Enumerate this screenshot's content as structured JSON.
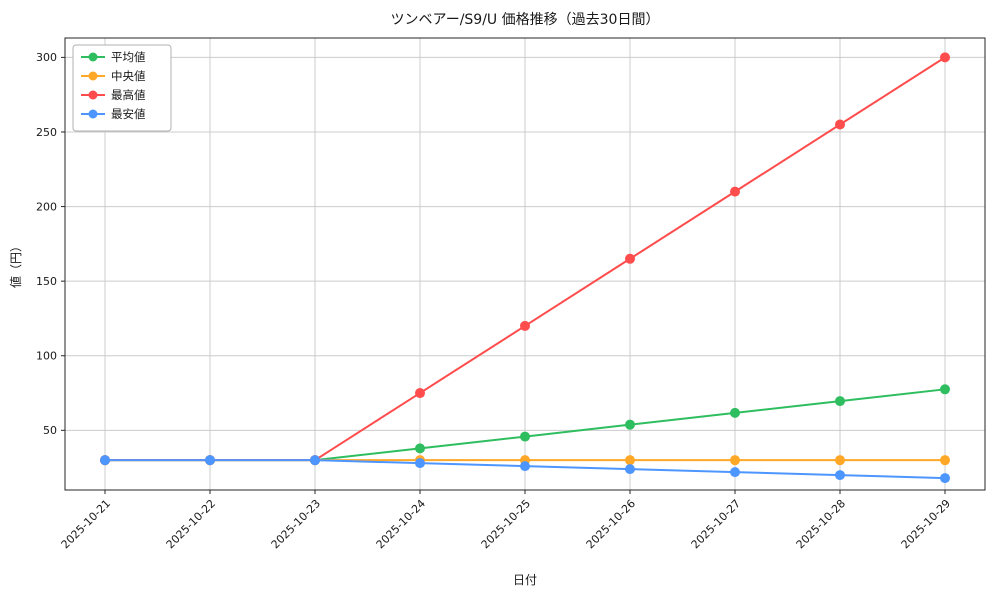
{
  "chart_data": {
    "type": "line",
    "title": "ツンベアー/S9/U 価格推移（過去30日間）",
    "xlabel": "日付",
    "ylabel": "値（円）",
    "categories": [
      "2025-10-21",
      "2025-10-22",
      "2025-10-23",
      "2025-10-24",
      "2025-10-25",
      "2025-10-26",
      "2025-10-27",
      "2025-10-28",
      "2025-10-29"
    ],
    "series": [
      {
        "name": "平均値",
        "color": "#2fbe5f",
        "values": [
          30,
          30,
          30,
          37.9,
          45.8,
          53.8,
          61.7,
          69.6,
          77.5
        ]
      },
      {
        "name": "中央値",
        "color": "#ffa726",
        "values": [
          30,
          30,
          30,
          30,
          30,
          30,
          30,
          30,
          30
        ]
      },
      {
        "name": "最高値",
        "color": "#ff4c4c",
        "values": [
          30,
          30,
          30,
          75,
          120,
          165,
          210,
          255,
          300
        ]
      },
      {
        "name": "最安値",
        "color": "#4d96ff",
        "values": [
          30,
          30,
          30,
          28,
          26,
          24,
          22,
          20,
          18
        ]
      }
    ],
    "yticks": [
      50,
      100,
      150,
      200,
      250,
      300
    ],
    "ylim": [
      10,
      313
    ],
    "grid": true,
    "legend_position": "upper-left",
    "colors": {
      "grid": "#cccccc",
      "frame": "#262626",
      "background": "#ffffff"
    }
  }
}
